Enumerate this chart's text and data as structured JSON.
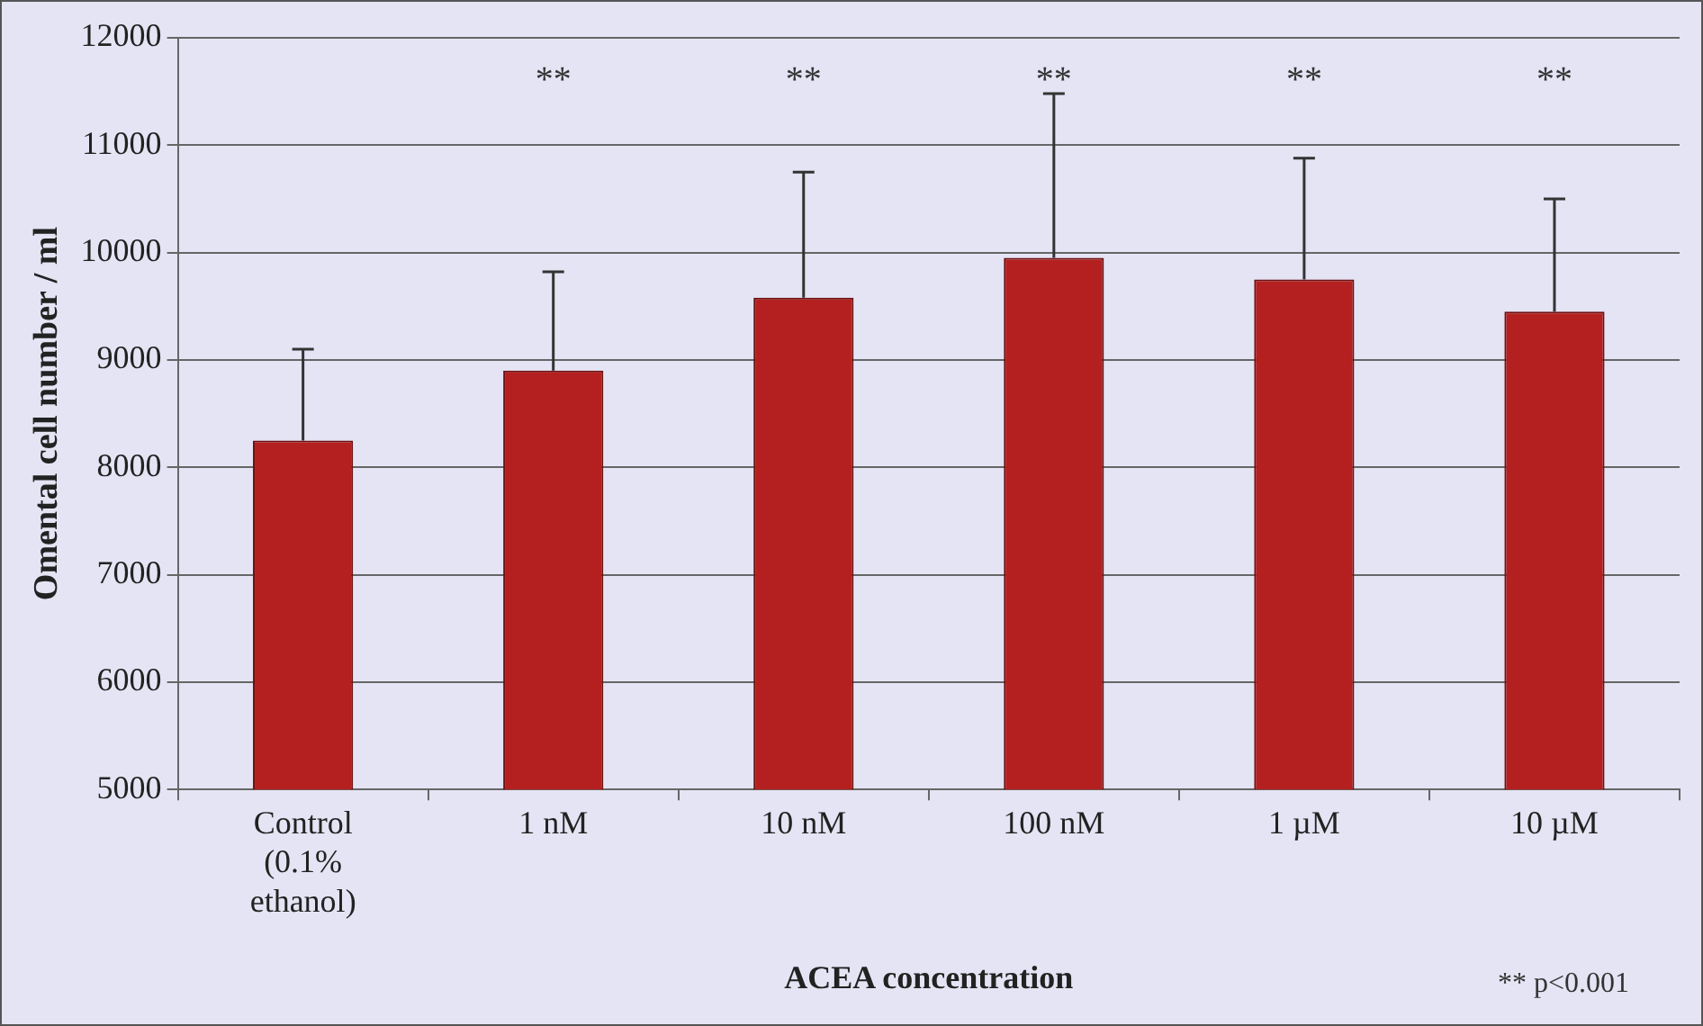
{
  "chart_data": {
    "type": "bar",
    "ylabel": "Omental cell number / ml",
    "xlabel": "ACEA concentration",
    "categories": [
      "Control\n(0.1%\nethanol)",
      "1 nM",
      "10 nM",
      "100 nM",
      "1 µM",
      "10 µM"
    ],
    "values": [
      8250,
      8900,
      9580,
      9950,
      9750,
      9450
    ],
    "errors": [
      [
        8250,
        9100
      ],
      [
        8900,
        9820
      ],
      [
        9580,
        10750
      ],
      [
        9950,
        11480
      ],
      [
        9750,
        10880
      ],
      [
        9450,
        10500
      ]
    ],
    "color": "#b3201f",
    "ylim": [
      5000,
      12000
    ],
    "yticks": [
      5000,
      6000,
      7000,
      8000,
      9000,
      10000,
      11000,
      12000
    ],
    "grid": "y",
    "legend": false,
    "annotations": [
      "**",
      "**",
      "**",
      "**",
      "**",
      "** p<0.001"
    ]
  }
}
